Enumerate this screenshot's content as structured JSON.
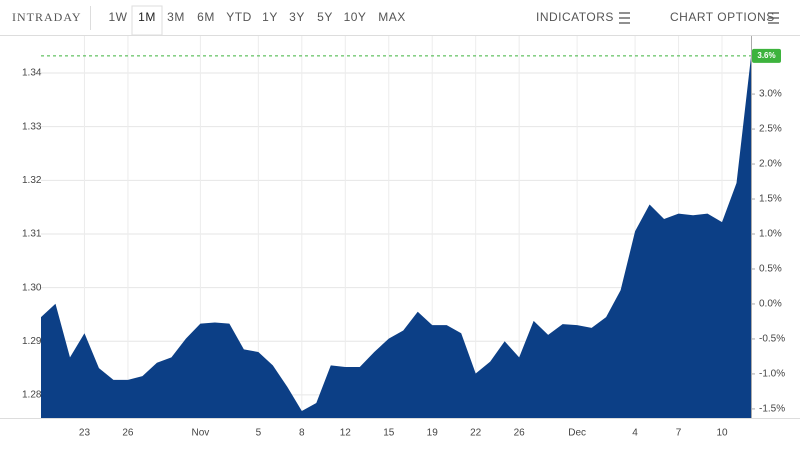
{
  "toolbar": {
    "title": "INTRADAY",
    "ranges": [
      "1W",
      "1M",
      "3M",
      "6M",
      "YTD",
      "1Y",
      "3Y",
      "5Y",
      "10Y",
      "MAX"
    ],
    "selected": "1M",
    "indicators": "INDICATORS",
    "chart_options": "CHART OPTIONS"
  },
  "chart_data": {
    "type": "area",
    "color": "#0c3f86",
    "categories": [
      null,
      null,
      null,
      "23",
      null,
      null,
      "26",
      null,
      null,
      null,
      null,
      "Nov",
      null,
      null,
      null,
      "5",
      null,
      null,
      "8",
      null,
      null,
      "12",
      null,
      null,
      "15",
      null,
      null,
      "19",
      null,
      null,
      "22",
      null,
      null,
      "26",
      null,
      null,
      null,
      "Dec",
      null,
      null,
      null,
      "4",
      null,
      null,
      "7",
      null,
      null,
      "10",
      null,
      null
    ],
    "values": [
      1.2945,
      1.297,
      1.287,
      1.2915,
      1.285,
      1.2828,
      1.2828,
      1.2835,
      1.286,
      1.287,
      1.2905,
      1.2933,
      1.2935,
      1.2933,
      1.2885,
      1.288,
      1.2855,
      1.2815,
      1.277,
      1.2785,
      1.2855,
      1.2852,
      1.2852,
      1.288,
      1.2905,
      1.292,
      1.2955,
      1.293,
      1.293,
      1.2915,
      1.284,
      1.2862,
      1.29,
      1.287,
      1.2938,
      1.2912,
      1.2932,
      1.293,
      1.2925,
      1.2945,
      1.2995,
      1.3105,
      1.3155,
      1.3128,
      1.3138,
      1.3135,
      1.3138,
      1.3122,
      1.3195,
      1.343
    ],
    "ylim": [
      1.2757,
      1.3469
    ],
    "yticks": [
      1.28,
      1.29,
      {
        "value": 1.3,
        "label": "1.30"
      },
      1.31,
      1.32,
      1.33,
      1.34
    ],
    "y2lim": [
      -1.63,
      3.83
    ],
    "y2ticks": [
      {
        "value": -1.5,
        "label": "-1.5%"
      },
      {
        "value": -1,
        "label": "-1.0%"
      },
      {
        "value": -0.5,
        "label": "-0.5%"
      },
      {
        "value": 0,
        "label": "0.0%"
      },
      {
        "value": 0.5,
        "label": "0.5%"
      },
      {
        "value": 1,
        "label": "1.0%"
      },
      {
        "value": 1.5,
        "label": "1.5%"
      },
      {
        "value": 2,
        "label": "2.0%"
      },
      {
        "value": 2.5,
        "label": "2.5%"
      },
      {
        "value": 3,
        "label": "3.0%"
      }
    ],
    "last_label": "3.6%",
    "badge_color": "#3db33d",
    "grid": true
  }
}
